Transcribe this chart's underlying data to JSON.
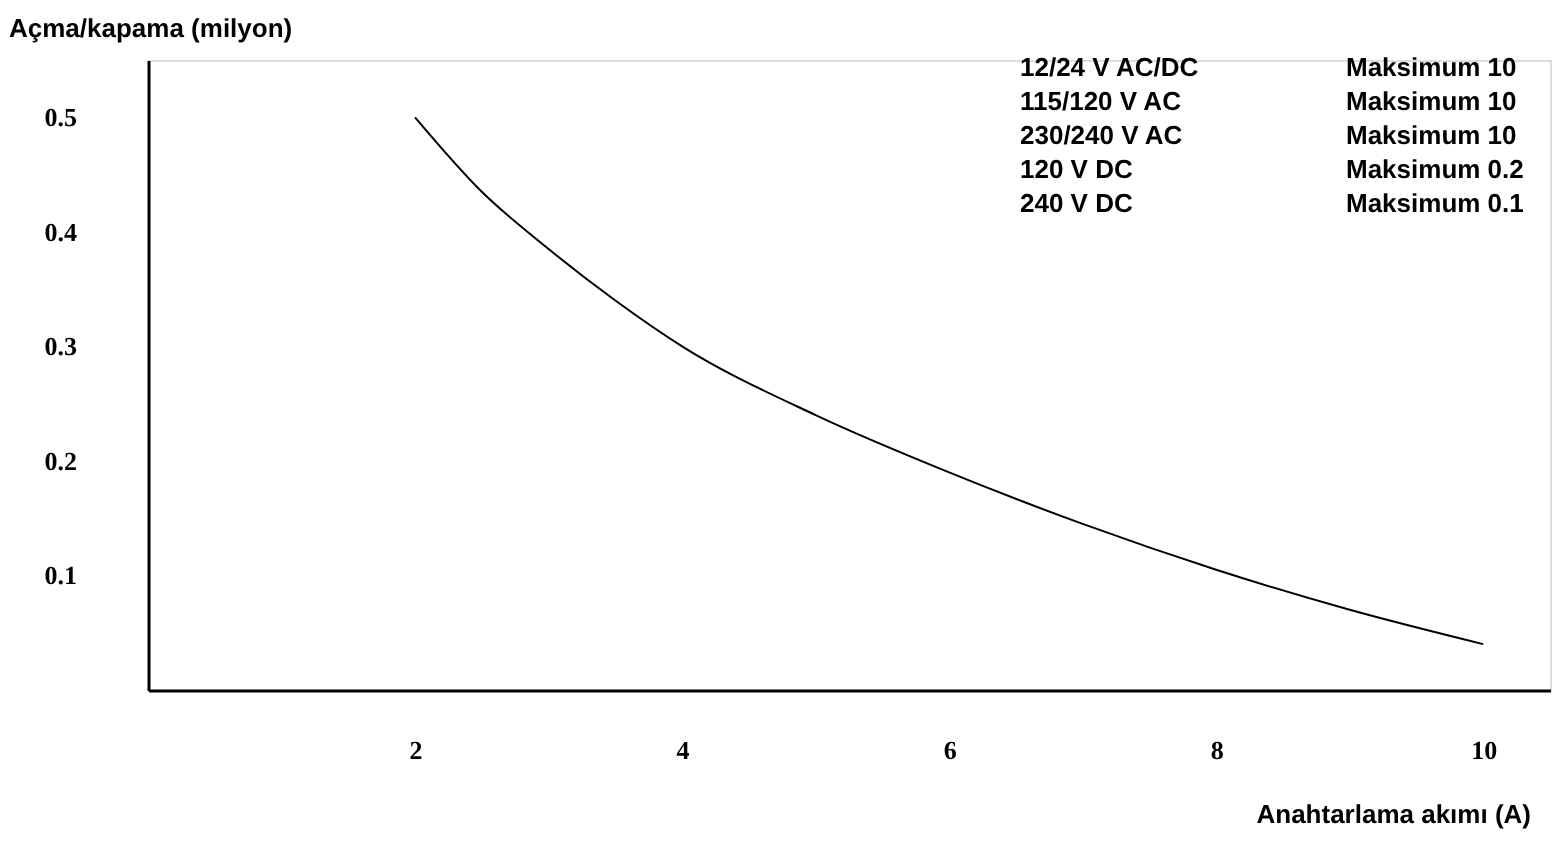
{
  "chart_data": {
    "type": "line",
    "xlabel": "Anahtarlama akımı (A)",
    "ylabel": "Açma/kapama (milyon)",
    "x": [
      2,
      2.5,
      3,
      3.5,
      4,
      5,
      6,
      7,
      8,
      9,
      10
    ],
    "series": [
      {
        "color": "#000000",
        "values": [
          0.5,
          0.435,
          0.385,
          0.34,
          0.3,
          0.24,
          0.19,
          0.145,
          0.105,
          0.07,
          0.04
        ]
      }
    ],
    "xlim": [
      0,
      10.5
    ],
    "ylim": [
      0,
      0.55
    ],
    "xticks": [
      2,
      4,
      6,
      8,
      10
    ],
    "yticks": [
      0.1,
      0.2,
      0.3,
      0.4,
      0.5
    ],
    "grid": false,
    "legend": false,
    "marker": "none",
    "line_style": "solid",
    "annotations": [
      "12/24 V AC/DC",
      "Maksimum 10",
      "115/120 V AC",
      "Maksimum 10",
      "230/240 V AC",
      "Maksimum 10",
      "120 V DC",
      "Maksimum 0.2",
      "240 V DC",
      "Maksimum 0.1"
    ]
  }
}
